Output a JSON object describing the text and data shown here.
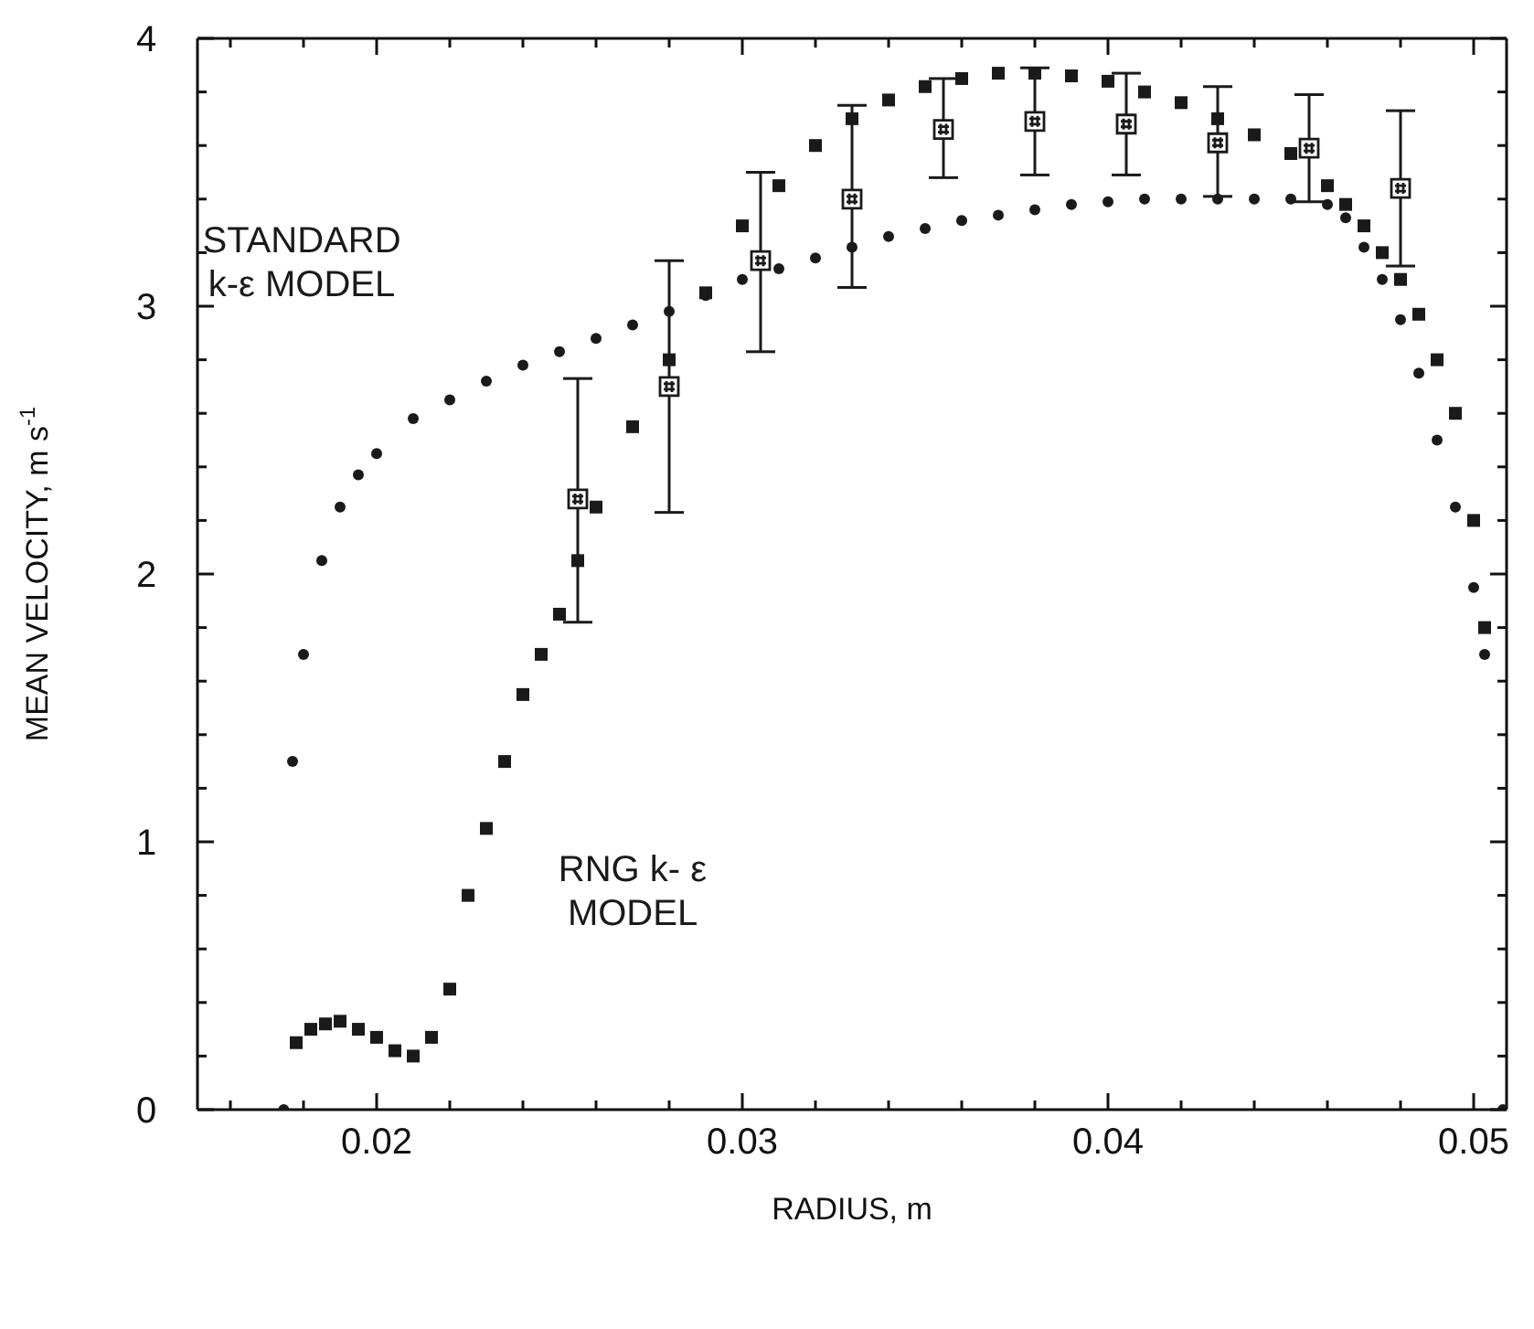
{
  "chart_data": {
    "type": "scatter",
    "xlabel": "RADIUS, m",
    "ylabel": "MEAN VELOCITY, m s$^{-1}$",
    "xlim": [
      0.0151,
      0.0509
    ],
    "ylim": [
      0,
      4
    ],
    "xticks": [
      {
        "value": 0.016,
        "label": null
      },
      {
        "value": 0.018,
        "label": null
      },
      0.02,
      {
        "value": 0.022,
        "label": null
      },
      {
        "value": 0.024,
        "label": null
      },
      {
        "value": 0.026,
        "label": null
      },
      {
        "value": 0.028,
        "label": null
      },
      0.03,
      {
        "value": 0.032,
        "label": null
      },
      {
        "value": 0.034,
        "label": null
      },
      {
        "value": 0.036,
        "label": null
      },
      {
        "value": 0.038,
        "label": null
      },
      0.04,
      {
        "value": 0.042,
        "label": null
      },
      {
        "value": 0.044,
        "label": null
      },
      {
        "value": 0.046,
        "label": null
      },
      {
        "value": 0.048,
        "label": null
      },
      0.05
    ],
    "yticks": [
      0,
      {
        "value": 0.2,
        "label": null
      },
      {
        "value": 0.4,
        "label": null
      },
      {
        "value": 0.6,
        "label": null
      },
      {
        "value": 0.8,
        "label": null
      },
      1,
      {
        "value": 1.2,
        "label": null
      },
      {
        "value": 1.4,
        "label": null
      },
      {
        "value": 1.6,
        "label": null
      },
      {
        "value": 1.8,
        "label": null
      },
      2,
      {
        "value": 2.2,
        "label": null
      },
      {
        "value": 2.4,
        "label": null
      },
      {
        "value": 2.6,
        "label": null
      },
      {
        "value": 2.8,
        "label": null
      },
      3,
      {
        "value": 3.2,
        "label": null
      },
      {
        "value": 3.4,
        "label": null
      },
      {
        "value": 3.6,
        "label": null
      },
      {
        "value": 3.8,
        "label": null
      },
      4
    ],
    "series": [
      {
        "name": "STANDARD k-ε MODEL",
        "color": "#1a1a1a",
        "marker": "circle",
        "x": [
          0.01746,
          0.0177,
          0.018,
          0.0185,
          0.019,
          0.0195,
          0.02,
          0.021,
          0.022,
          0.023,
          0.024,
          0.025,
          0.026,
          0.027,
          0.028,
          0.029,
          0.03,
          0.031,
          0.032,
          0.033,
          0.034,
          0.035,
          0.036,
          0.037,
          0.038,
          0.039,
          0.04,
          0.041,
          0.042,
          0.043,
          0.044,
          0.045,
          0.046,
          0.0465,
          0.047,
          0.0475,
          0.048,
          0.0485,
          0.049,
          0.0495,
          0.05,
          0.0503,
          0.0508
        ],
        "values": [
          0,
          1.3,
          1.7,
          2.05,
          2.25,
          2.37,
          2.45,
          2.58,
          2.65,
          2.72,
          2.78,
          2.83,
          2.88,
          2.93,
          2.98,
          3.04,
          3.1,
          3.14,
          3.18,
          3.22,
          3.26,
          3.29,
          3.32,
          3.34,
          3.36,
          3.38,
          3.39,
          3.4,
          3.4,
          3.4,
          3.4,
          3.4,
          3.38,
          3.33,
          3.22,
          3.1,
          2.95,
          2.75,
          2.5,
          2.25,
          1.95,
          1.7,
          0
        ]
      },
      {
        "name": "RNG k- ε MODEL",
        "color": "#1a1a1a",
        "marker": "square",
        "x": [
          0.0178,
          0.0182,
          0.0186,
          0.019,
          0.0195,
          0.02,
          0.0205,
          0.021,
          0.0215,
          0.022,
          0.0225,
          0.023,
          0.0235,
          0.024,
          0.0245,
          0.025,
          0.0255,
          0.026,
          0.027,
          0.028,
          0.029,
          0.03,
          0.031,
          0.032,
          0.033,
          0.034,
          0.035,
          0.036,
          0.037,
          0.038,
          0.039,
          0.04,
          0.041,
          0.042,
          0.043,
          0.044,
          0.045,
          0.046,
          0.0465,
          0.047,
          0.0475,
          0.048,
          0.0485,
          0.049,
          0.0495,
          0.05,
          0.0503
        ],
        "values": [
          0.25,
          0.3,
          0.32,
          0.33,
          0.3,
          0.27,
          0.22,
          0.2,
          0.27,
          0.45,
          0.8,
          1.05,
          1.3,
          1.55,
          1.7,
          1.85,
          2.05,
          2.25,
          2.55,
          2.8,
          3.05,
          3.3,
          3.45,
          3.6,
          3.7,
          3.77,
          3.82,
          3.85,
          3.87,
          3.87,
          3.86,
          3.84,
          3.8,
          3.76,
          3.7,
          3.64,
          3.57,
          3.45,
          3.38,
          3.3,
          3.2,
          3.1,
          2.97,
          2.8,
          2.6,
          2.2,
          1.8
        ]
      },
      {
        "color": "#1a1a1a",
        "x": [
          0.0255,
          0.028,
          0.0305,
          0.033,
          0.0355,
          0.038,
          0.0405,
          0.043,
          0.0455,
          0.048
        ],
        "values": [
          2.28,
          2.7,
          3.17,
          3.4,
          3.66,
          3.69,
          3.68,
          3.61,
          3.59,
          3.44
        ],
        "errors": [
          [
            1.82,
            2.73
          ],
          [
            2.23,
            3.17
          ],
          [
            2.83,
            3.5
          ],
          [
            3.07,
            3.75
          ],
          [
            3.48,
            3.85
          ],
          [
            3.49,
            3.89
          ],
          [
            3.49,
            3.87
          ],
          [
            3.41,
            3.82
          ],
          [
            3.39,
            3.79
          ],
          [
            3.15,
            3.73
          ]
        ]
      }
    ]
  }
}
